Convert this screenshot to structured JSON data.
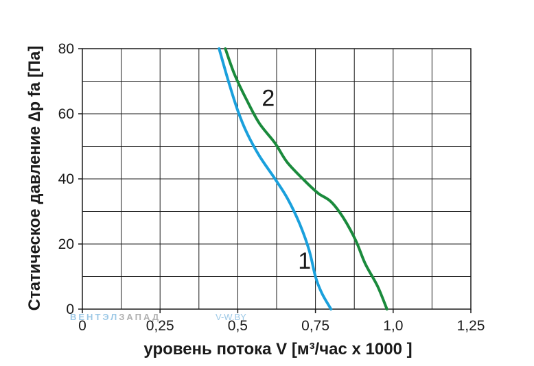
{
  "chart_data": {
    "type": "line",
    "xlabel": "уровень потока  V [м³/час x 1000 ]",
    "ylabel": "Статическое давление  ∆p fa [Па]",
    "xlim": [
      0,
      1.25
    ],
    "ylim": [
      0,
      80
    ],
    "x_ticks": [
      {
        "value": 0,
        "label": "0"
      },
      {
        "value": 0.25,
        "label": "0,25"
      },
      {
        "value": 0.5,
        "label": "0,5"
      },
      {
        "value": 0.75,
        "label": "0,75"
      },
      {
        "value": 1.0,
        "label": "1,0"
      },
      {
        "value": 1.25,
        "label": "1,25"
      }
    ],
    "y_ticks": [
      {
        "value": 0,
        "label": "0"
      },
      {
        "value": 20,
        "label": "20"
      },
      {
        "value": 40,
        "label": "40"
      },
      {
        "value": 60,
        "label": "60"
      },
      {
        "value": 80,
        "label": "80"
      }
    ],
    "grid": true,
    "series": [
      {
        "name": "1",
        "color": "#1aa0dc",
        "points": [
          [
            0.44,
            80
          ],
          [
            0.47,
            70
          ],
          [
            0.5,
            61
          ],
          [
            0.53,
            54
          ],
          [
            0.57,
            47
          ],
          [
            0.62,
            40
          ],
          [
            0.66,
            34
          ],
          [
            0.7,
            26
          ],
          [
            0.73,
            18
          ],
          [
            0.75,
            10
          ],
          [
            0.77,
            5
          ],
          [
            0.8,
            0
          ]
        ],
        "label_at": [
          0.715,
          15
        ]
      },
      {
        "name": "2",
        "color": "#1a8a3c",
        "points": [
          [
            0.46,
            80
          ],
          [
            0.49,
            72
          ],
          [
            0.53,
            64
          ],
          [
            0.57,
            57
          ],
          [
            0.62,
            51
          ],
          [
            0.66,
            45
          ],
          [
            0.72,
            39
          ],
          [
            0.76,
            35.5
          ],
          [
            0.8,
            33
          ],
          [
            0.84,
            28
          ],
          [
            0.88,
            21
          ],
          [
            0.91,
            14
          ],
          [
            0.95,
            7
          ],
          [
            0.98,
            0
          ]
        ],
        "label_at": [
          0.598,
          65
        ]
      }
    ]
  },
  "watermark": {
    "left_part1": "ВЕНТЭЛ",
    "left_part2": "ЗАПАД",
    "right": "V-W.BY"
  }
}
